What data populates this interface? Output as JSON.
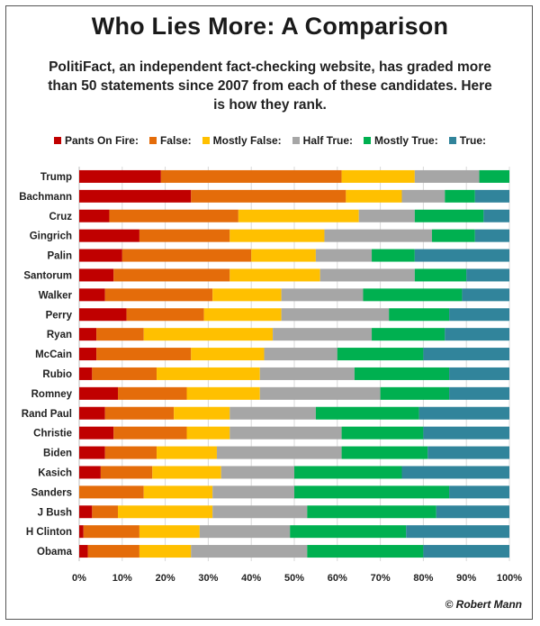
{
  "header": {
    "title": "Who Lies More: A Comparison",
    "subtitle": "PolitiFact, an independent fact-checking website, has graded more than 50 statements since 2007 from each of these candidates. Here is how they rank."
  },
  "credit": "© Robert Mann",
  "colors": {
    "pants_on_fire": "#c00000",
    "false": "#e46c0a",
    "mostly_false": "#ffc000",
    "half_true": "#a6a6a6",
    "mostly_true": "#00b050",
    "true": "#31849b"
  },
  "chart_data": {
    "type": "bar",
    "orientation": "horizontal",
    "stacked": true,
    "percent": true,
    "title": "Who Lies More: A Comparison",
    "xlim": [
      0,
      100
    ],
    "x_ticks": [
      "0%",
      "10%",
      "20%",
      "30%",
      "40%",
      "50%",
      "60%",
      "70%",
      "80%",
      "90%",
      "100%"
    ],
    "grid": "vertical",
    "legend_position": "top",
    "categories": [
      "Trump",
      "Bachmann",
      "Cruz",
      "Gingrich",
      "Palin",
      "Santorum",
      "Walker",
      "Perry",
      "Ryan",
      "McCain",
      "Rubio",
      "Romney",
      "Rand Paul",
      "Christie",
      "Biden",
      "Kasich",
      "Sanders",
      "J Bush",
      "H Clinton",
      "Obama"
    ],
    "series": [
      {
        "name": "Pants On Fire:",
        "color": "#c00000",
        "values": [
          19,
          26,
          7,
          14,
          10,
          8,
          6,
          11,
          4,
          4,
          3,
          9,
          6,
          8,
          6,
          5,
          0,
          3,
          1,
          2
        ]
      },
      {
        "name": "False:",
        "color": "#e46c0a",
        "values": [
          42,
          36,
          30,
          21,
          30,
          27,
          25,
          18,
          11,
          22,
          15,
          16,
          16,
          17,
          12,
          12,
          15,
          6,
          13,
          12
        ]
      },
      {
        "name": "Mostly False:",
        "color": "#ffc000",
        "values": [
          17,
          13,
          28,
          22,
          15,
          21,
          16,
          18,
          30,
          17,
          24,
          17,
          13,
          10,
          14,
          16,
          16,
          22,
          14,
          12
        ]
      },
      {
        "name": "Half True:",
        "color": "#a6a6a6",
        "values": [
          15,
          10,
          13,
          25,
          13,
          22,
          19,
          25,
          23,
          17,
          22,
          28,
          20,
          26,
          29,
          17,
          19,
          22,
          21,
          27
        ]
      },
      {
        "name": "Mostly True:",
        "color": "#00b050",
        "values": [
          7,
          7,
          16,
          10,
          10,
          12,
          23,
          14,
          17,
          20,
          22,
          16,
          24,
          19,
          20,
          25,
          36,
          30,
          27,
          27
        ]
      },
      {
        "name": "True:",
        "color": "#31849b",
        "values": [
          0,
          8,
          6,
          8,
          22,
          10,
          11,
          14,
          15,
          20,
          14,
          14,
          21,
          20,
          19,
          25,
          14,
          17,
          24,
          20
        ]
      }
    ]
  }
}
